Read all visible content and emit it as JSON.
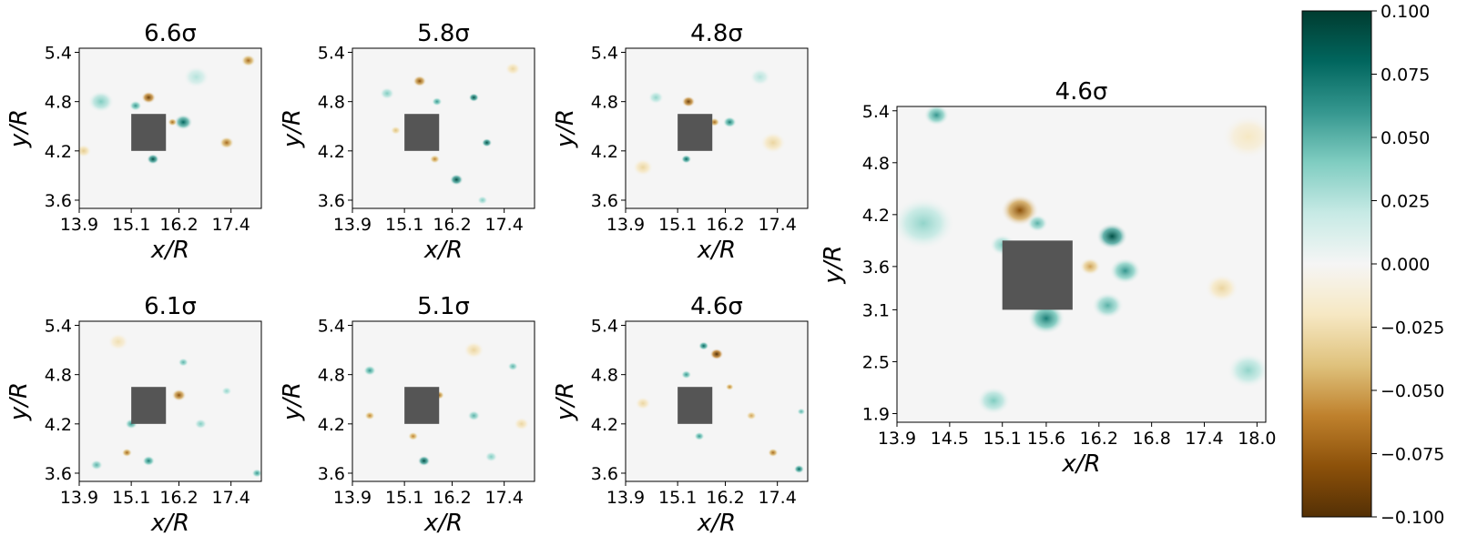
{
  "chart_data": {
    "type": "heatmap",
    "colormap": "BrBG",
    "obstacle_color": "#555555",
    "colorbar": {
      "min": -0.1,
      "max": 0.1,
      "ticks": [
        "0.100",
        "0.075",
        "0.050",
        "0.025",
        "0.000",
        "−0.025",
        "−0.050",
        "−0.075",
        "−0.100"
      ],
      "tick_values": [
        0.1,
        0.075,
        0.05,
        0.025,
        0.0,
        -0.025,
        -0.05,
        -0.075,
        -0.1
      ]
    },
    "panels": [
      {
        "title": "6.6σ",
        "xlabel": "x/R",
        "ylabel": "y/R",
        "xticks": [
          "13.9",
          "15.1",
          "16.2",
          "17.4"
        ],
        "xtick_values": [
          13.9,
          15.1,
          16.2,
          17.4
        ],
        "yticks": [
          "5.4",
          "4.8",
          "4.2",
          "3.6"
        ],
        "ytick_values": [
          5.4,
          4.8,
          4.2,
          3.6
        ],
        "xlim": [
          13.9,
          18.1
        ],
        "ylim": [
          3.5,
          5.45
        ],
        "obstacle": {
          "x0": 15.1,
          "x1": 15.9,
          "y0": 4.2,
          "y1": 4.65
        },
        "blobs": [
          {
            "x": 15.5,
            "y": 4.85,
            "w": -0.09,
            "r": 0.14
          },
          {
            "x": 15.2,
            "y": 4.75,
            "w": 0.06,
            "r": 0.12
          },
          {
            "x": 16.3,
            "y": 4.55,
            "w": 0.08,
            "r": 0.18
          },
          {
            "x": 15.6,
            "y": 4.1,
            "w": 0.09,
            "r": 0.12
          },
          {
            "x": 16.05,
            "y": 4.55,
            "w": -0.07,
            "r": 0.09
          },
          {
            "x": 17.3,
            "y": 4.3,
            "w": -0.07,
            "r": 0.14
          },
          {
            "x": 17.8,
            "y": 5.3,
            "w": -0.07,
            "r": 0.14
          },
          {
            "x": 14.4,
            "y": 4.8,
            "w": 0.04,
            "r": 0.25
          },
          {
            "x": 14.0,
            "y": 4.2,
            "w": -0.035,
            "r": 0.15
          },
          {
            "x": 16.6,
            "y": 5.1,
            "w": 0.025,
            "r": 0.25
          }
        ]
      },
      {
        "title": "5.8σ",
        "xlabel": "x/R",
        "ylabel": "y/R",
        "xticks": [
          "13.9",
          "15.1",
          "16.2",
          "17.4"
        ],
        "xtick_values": [
          13.9,
          15.1,
          16.2,
          17.4
        ],
        "yticks": [
          "5.4",
          "4.8",
          "4.2",
          "3.6"
        ],
        "ytick_values": [
          5.4,
          4.8,
          4.2,
          3.6
        ],
        "xlim": [
          13.9,
          18.1
        ],
        "ylim": [
          3.5,
          5.45
        ],
        "obstacle": {
          "x0": 15.1,
          "x1": 15.9,
          "y0": 4.2,
          "y1": 4.65
        },
        "blobs": [
          {
            "x": 15.45,
            "y": 5.05,
            "w": -0.08,
            "r": 0.13
          },
          {
            "x": 15.85,
            "y": 4.8,
            "w": 0.06,
            "r": 0.1
          },
          {
            "x": 16.7,
            "y": 4.85,
            "w": 0.09,
            "r": 0.1
          },
          {
            "x": 17.0,
            "y": 4.3,
            "w": 0.09,
            "r": 0.1
          },
          {
            "x": 16.3,
            "y": 3.85,
            "w": 0.09,
            "r": 0.13
          },
          {
            "x": 15.8,
            "y": 4.1,
            "w": -0.06,
            "r": 0.1
          },
          {
            "x": 14.7,
            "y": 4.9,
            "w": 0.04,
            "r": 0.14
          },
          {
            "x": 14.9,
            "y": 4.45,
            "w": -0.04,
            "r": 0.1
          },
          {
            "x": 17.6,
            "y": 5.2,
            "w": -0.03,
            "r": 0.15
          },
          {
            "x": 16.9,
            "y": 3.6,
            "w": 0.04,
            "r": 0.1
          }
        ]
      },
      {
        "title": "4.8σ",
        "xlabel": "x/R",
        "ylabel": "y/R",
        "xticks": [
          "13.9",
          "15.1",
          "16.2",
          "17.4"
        ],
        "xtick_values": [
          13.9,
          15.1,
          16.2,
          17.4
        ],
        "yticks": [
          "5.4",
          "4.8",
          "4.2",
          "3.6"
        ],
        "ytick_values": [
          5.4,
          4.8,
          4.2,
          3.6
        ],
        "xlim": [
          13.9,
          18.1
        ],
        "ylim": [
          3.5,
          5.45
        ],
        "obstacle": {
          "x0": 15.1,
          "x1": 15.9,
          "y0": 4.2,
          "y1": 4.65
        },
        "blobs": [
          {
            "x": 15.35,
            "y": 4.8,
            "w": -0.09,
            "r": 0.13
          },
          {
            "x": 15.95,
            "y": 4.55,
            "w": -0.07,
            "r": 0.1
          },
          {
            "x": 16.3,
            "y": 4.55,
            "w": 0.07,
            "r": 0.13
          },
          {
            "x": 15.3,
            "y": 4.1,
            "w": 0.08,
            "r": 0.1
          },
          {
            "x": 14.6,
            "y": 4.85,
            "w": 0.035,
            "r": 0.15
          },
          {
            "x": 17.3,
            "y": 4.3,
            "w": -0.03,
            "r": 0.25
          },
          {
            "x": 14.3,
            "y": 4.0,
            "w": -0.03,
            "r": 0.2
          },
          {
            "x": 17.0,
            "y": 5.1,
            "w": 0.025,
            "r": 0.2
          }
        ]
      },
      {
        "title": "6.1σ",
        "xlabel": "x/R",
        "ylabel": "y/R",
        "xticks": [
          "13.9",
          "15.1",
          "16.2",
          "17.4"
        ],
        "xtick_values": [
          13.9,
          15.1,
          16.2,
          17.4
        ],
        "yticks": [
          "5.4",
          "4.8",
          "4.2",
          "3.6"
        ],
        "ytick_values": [
          5.4,
          4.8,
          4.2,
          3.6
        ],
        "xlim": [
          13.9,
          18.1
        ],
        "ylim": [
          3.5,
          5.45
        ],
        "obstacle": {
          "x0": 15.1,
          "x1": 15.9,
          "y0": 4.2,
          "y1": 4.65
        },
        "blobs": [
          {
            "x": 16.2,
            "y": 4.55,
            "w": -0.08,
            "r": 0.14
          },
          {
            "x": 15.1,
            "y": 4.2,
            "w": 0.06,
            "r": 0.12
          },
          {
            "x": 15.0,
            "y": 3.85,
            "w": -0.07,
            "r": 0.1
          },
          {
            "x": 15.5,
            "y": 3.75,
            "w": 0.07,
            "r": 0.12
          },
          {
            "x": 16.3,
            "y": 4.95,
            "w": 0.05,
            "r": 0.1
          },
          {
            "x": 14.3,
            "y": 3.7,
            "w": 0.05,
            "r": 0.12
          },
          {
            "x": 16.7,
            "y": 4.2,
            "w": 0.04,
            "r": 0.12
          },
          {
            "x": 18.0,
            "y": 3.6,
            "w": 0.06,
            "r": 0.1
          },
          {
            "x": 17.3,
            "y": 4.6,
            "w": 0.035,
            "r": 0.1
          },
          {
            "x": 14.8,
            "y": 5.2,
            "w": -0.025,
            "r": 0.2
          }
        ]
      },
      {
        "title": "5.1σ",
        "xlabel": "x/R",
        "ylabel": "y/R",
        "xticks": [
          "13.9",
          "15.1",
          "16.2",
          "17.4"
        ],
        "xtick_values": [
          13.9,
          15.1,
          16.2,
          17.4
        ],
        "yticks": [
          "5.4",
          "4.8",
          "4.2",
          "3.6"
        ],
        "ytick_values": [
          5.4,
          4.8,
          4.2,
          3.6
        ],
        "xlim": [
          13.9,
          18.1
        ],
        "ylim": [
          3.5,
          5.45
        ],
        "obstacle": {
          "x0": 15.1,
          "x1": 15.9,
          "y0": 4.2,
          "y1": 4.65
        },
        "blobs": [
          {
            "x": 15.9,
            "y": 4.55,
            "w": -0.07,
            "r": 0.1
          },
          {
            "x": 15.3,
            "y": 4.05,
            "w": -0.06,
            "r": 0.1
          },
          {
            "x": 15.55,
            "y": 3.75,
            "w": 0.09,
            "r": 0.12
          },
          {
            "x": 14.3,
            "y": 4.85,
            "w": 0.06,
            "r": 0.12
          },
          {
            "x": 14.3,
            "y": 4.3,
            "w": -0.06,
            "r": 0.1
          },
          {
            "x": 16.7,
            "y": 4.3,
            "w": 0.05,
            "r": 0.12
          },
          {
            "x": 17.6,
            "y": 4.9,
            "w": 0.05,
            "r": 0.1
          },
          {
            "x": 17.1,
            "y": 3.8,
            "w": 0.04,
            "r": 0.12
          },
          {
            "x": 16.7,
            "y": 5.1,
            "w": -0.03,
            "r": 0.2
          },
          {
            "x": 17.8,
            "y": 4.2,
            "w": -0.03,
            "r": 0.15
          }
        ]
      },
      {
        "title": "4.6σ",
        "xlabel": "x/R",
        "ylabel": "y/R",
        "xticks": [
          "13.9",
          "15.1",
          "16.2",
          "17.4"
        ],
        "xtick_values": [
          13.9,
          15.1,
          16.2,
          17.4
        ],
        "yticks": [
          "5.4",
          "4.8",
          "4.2",
          "3.6"
        ],
        "ytick_values": [
          5.4,
          4.8,
          4.2,
          3.6
        ],
        "xlim": [
          13.9,
          18.1
        ],
        "ylim": [
          3.5,
          5.45
        ],
        "obstacle": {
          "x0": 15.1,
          "x1": 15.9,
          "y0": 4.2,
          "y1": 4.65
        },
        "blobs": [
          {
            "x": 16.0,
            "y": 5.05,
            "w": -0.1,
            "r": 0.13
          },
          {
            "x": 15.7,
            "y": 5.15,
            "w": 0.08,
            "r": 0.1
          },
          {
            "x": 15.3,
            "y": 4.8,
            "w": 0.06,
            "r": 0.1
          },
          {
            "x": 16.3,
            "y": 4.65,
            "w": -0.06,
            "r": 0.08
          },
          {
            "x": 16.8,
            "y": 4.3,
            "w": -0.05,
            "r": 0.1
          },
          {
            "x": 15.6,
            "y": 4.05,
            "w": 0.06,
            "r": 0.1
          },
          {
            "x": 17.3,
            "y": 3.85,
            "w": -0.07,
            "r": 0.1
          },
          {
            "x": 17.9,
            "y": 3.65,
            "w": 0.08,
            "r": 0.1
          },
          {
            "x": 17.95,
            "y": 4.35,
            "w": 0.05,
            "r": 0.08
          },
          {
            "x": 14.3,
            "y": 4.45,
            "w": -0.03,
            "r": 0.15
          }
        ]
      },
      {
        "title": "4.6σ",
        "xlabel": "x/R",
        "ylabel": "y/R",
        "xticks": [
          "13.9",
          "14.5",
          "15.1",
          "15.6",
          "16.2",
          "16.8",
          "17.4",
          "18.0"
        ],
        "xtick_values": [
          13.9,
          14.5,
          15.1,
          15.6,
          16.2,
          16.8,
          17.4,
          18.0
        ],
        "yticks": [
          "5.4",
          "4.8",
          "4.2",
          "3.6",
          "3.1",
          "2.5",
          "1.9"
        ],
        "ytick_values": [
          5.4,
          4.8,
          4.2,
          3.6,
          3.1,
          2.5,
          1.9
        ],
        "xlim": [
          13.9,
          18.1
        ],
        "ylim": [
          1.8,
          5.45
        ],
        "obstacle": {
          "x0": 15.1,
          "x1": 15.9,
          "y0": 3.1,
          "y1": 3.9
        },
        "blobs": [
          {
            "x": 15.3,
            "y": 4.25,
            "w": -0.08,
            "r": 0.18
          },
          {
            "x": 15.1,
            "y": 3.85,
            "w": 0.04,
            "r": 0.12
          },
          {
            "x": 15.5,
            "y": 4.1,
            "w": 0.05,
            "r": 0.1
          },
          {
            "x": 16.35,
            "y": 3.95,
            "w": 0.09,
            "r": 0.15
          },
          {
            "x": 16.5,
            "y": 3.55,
            "w": 0.06,
            "r": 0.15
          },
          {
            "x": 16.1,
            "y": 3.6,
            "w": -0.05,
            "r": 0.1
          },
          {
            "x": 15.6,
            "y": 3.0,
            "w": 0.07,
            "r": 0.18
          },
          {
            "x": 16.3,
            "y": 3.15,
            "w": 0.05,
            "r": 0.15
          },
          {
            "x": 14.35,
            "y": 5.35,
            "w": 0.06,
            "r": 0.12
          },
          {
            "x": 14.2,
            "y": 4.1,
            "w": 0.035,
            "r": 0.3
          },
          {
            "x": 15.0,
            "y": 2.05,
            "w": 0.04,
            "r": 0.16
          },
          {
            "x": 17.6,
            "y": 3.35,
            "w": -0.03,
            "r": 0.16
          },
          {
            "x": 17.9,
            "y": 2.4,
            "w": 0.035,
            "r": 0.2
          },
          {
            "x": 17.9,
            "y": 5.1,
            "w": -0.02,
            "r": 0.25
          }
        ]
      }
    ]
  }
}
